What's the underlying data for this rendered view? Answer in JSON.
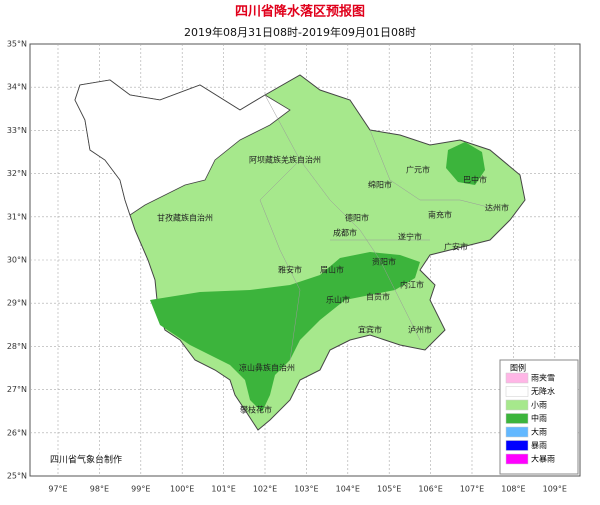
{
  "header": {
    "title": "四川省降水落区预报图",
    "subtitle": "2019年08月31日08时-2019年09月01日08时"
  },
  "lat_labels": [
    "35°N",
    "34°N",
    "33°N",
    "32°N",
    "31°N",
    "30°N",
    "29°N",
    "28°N",
    "27°N",
    "26°N",
    "25°N"
  ],
  "lon_labels": [
    "97°E",
    "98°E",
    "99°E",
    "100°E",
    "101°E",
    "102°E",
    "103°E",
    "104°E",
    "105°E",
    "106°E",
    "107°E",
    "108°E",
    "109°E"
  ],
  "places": [
    "阿坝藏族羌族自治州",
    "广元市",
    "巴中市",
    "绵阳市",
    "甘孜藏族自治州",
    "德阳市",
    "南充市",
    "达州市",
    "成都市",
    "遂宁市",
    "广安市",
    "资阳市",
    "雅安市",
    "眉山市",
    "内江市",
    "乐山市",
    "自贡市",
    "宜宾市",
    "泸州市",
    "凉山彝族自治州",
    "攀枝花市"
  ],
  "legend": {
    "title": "图例",
    "items": [
      {
        "label": "雨夹雪",
        "color": "#ffb6e6"
      },
      {
        "label": "无降水",
        "color": "#ffffff"
      },
      {
        "label": "小雨",
        "color": "#a6e88c"
      },
      {
        "label": "中雨",
        "color": "#3cb43c"
      },
      {
        "label": "大雨",
        "color": "#63b8ff"
      },
      {
        "label": "暴雨",
        "color": "#0000ff"
      },
      {
        "label": "大暴雨",
        "color": "#ff00ff"
      }
    ]
  },
  "credit": "四川省气象台制作"
}
